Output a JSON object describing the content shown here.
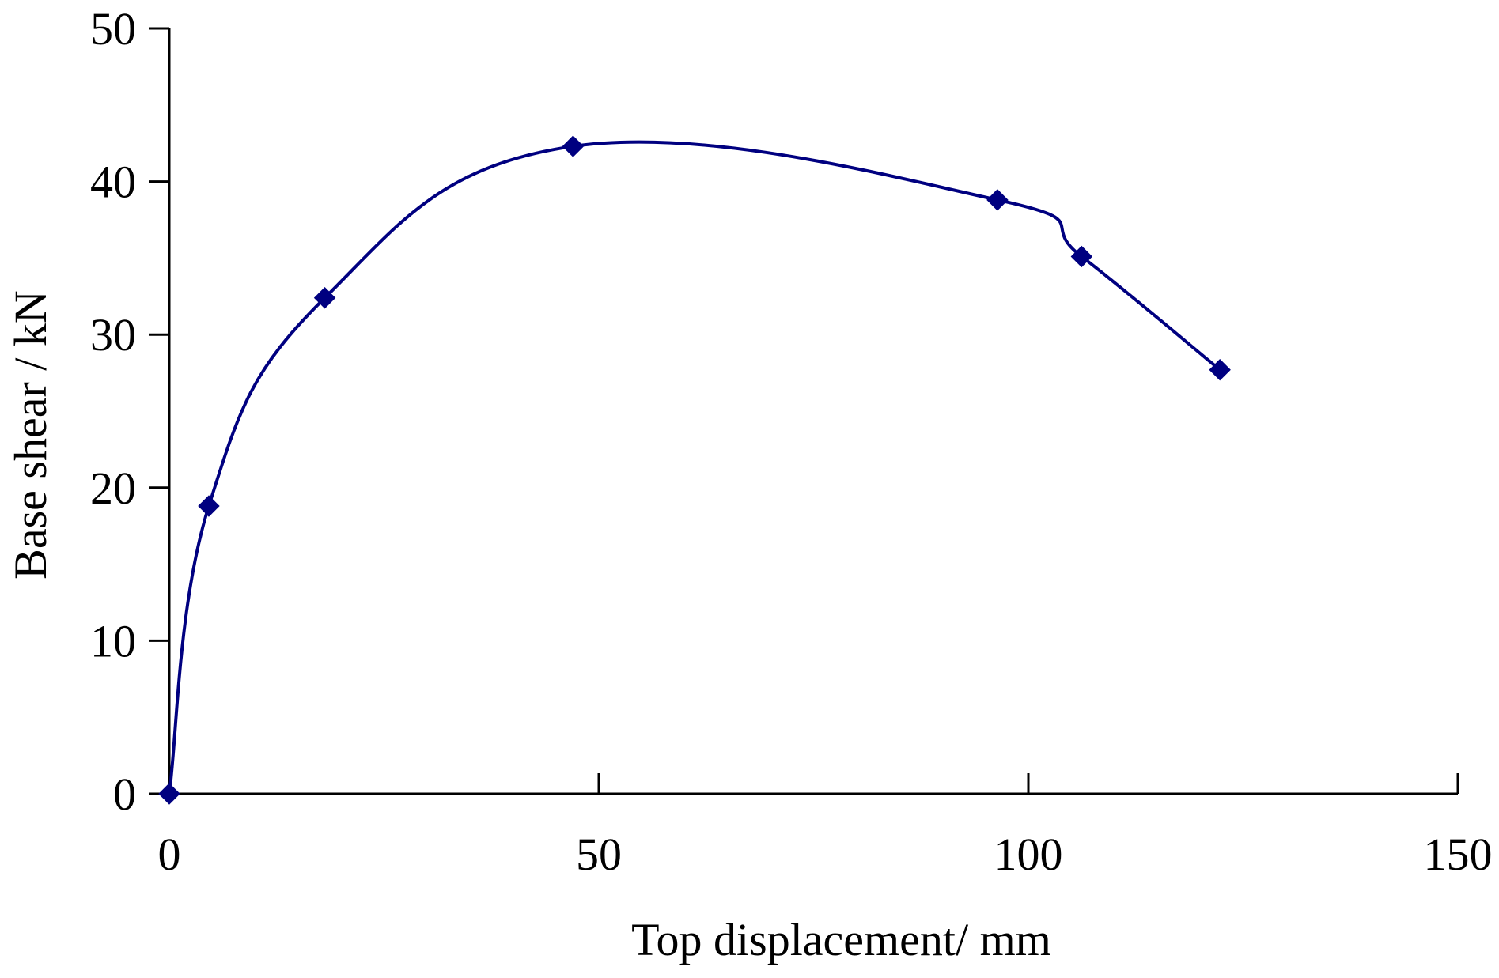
{
  "chart_data": {
    "type": "line",
    "title": "",
    "xlabel": "Top displacement/ mm",
    "ylabel": "Base shear / kN",
    "xlim": [
      0,
      150
    ],
    "ylim": [
      0,
      50
    ],
    "xticks": [
      0,
      50,
      100,
      150
    ],
    "yticks": [
      0,
      10,
      20,
      30,
      40,
      50
    ],
    "xtick_labels": [
      "0",
      "50",
      "100",
      "150"
    ],
    "ytick_labels": [
      "0",
      "10",
      "20",
      "30",
      "40",
      "50"
    ],
    "grid": false,
    "legend": "none",
    "series": [
      {
        "color": "#000080",
        "marker": "diamond",
        "smooth": true,
        "x": [
          0,
          4.6,
          18.1,
          47,
          96.4,
          106.2,
          122.3
        ],
        "y": [
          0,
          18.8,
          32.4,
          42.3,
          38.8,
          35.1,
          27.7
        ]
      }
    ]
  }
}
